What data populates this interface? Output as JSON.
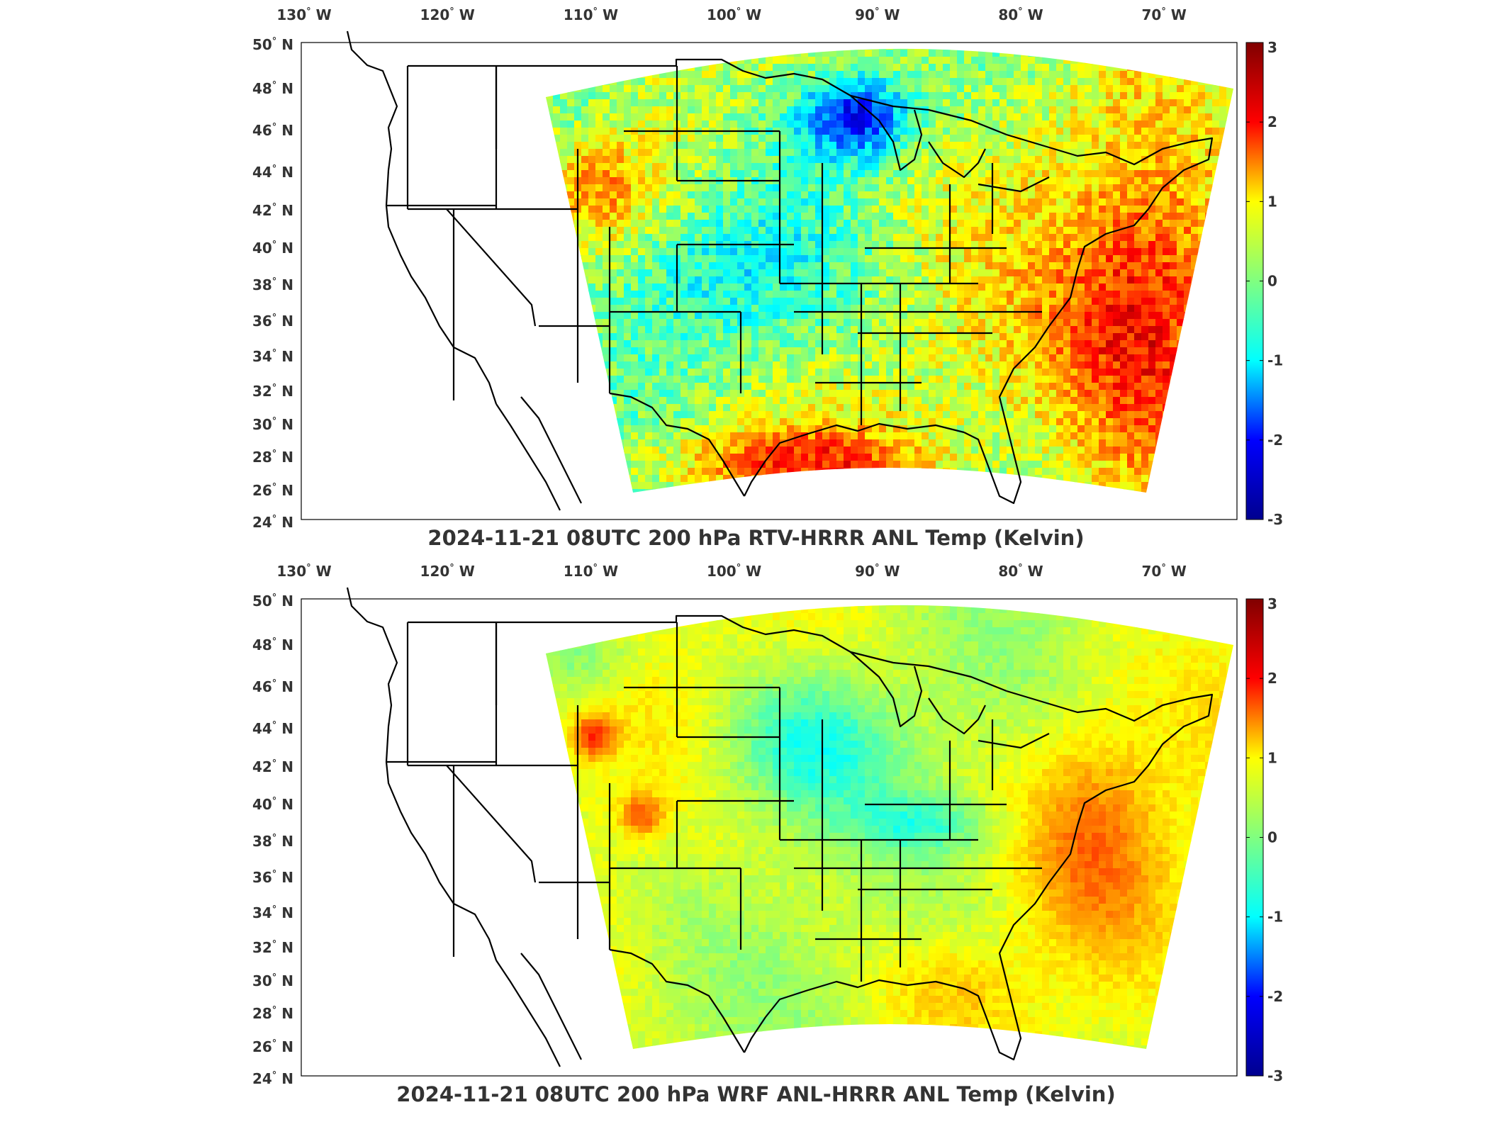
{
  "panels": [
    {
      "title": "2024-11-21 08UTC 200 hPa RTV-HRRR ANL Temp (Kelvin)",
      "variant": "rtv"
    },
    {
      "title": "2024-11-21 08UTC 200 hPa WRF ANL-HRRR ANL Temp (Kelvin)",
      "variant": "wrf"
    }
  ],
  "map": {
    "lon_ticks": [
      {
        "value": -130,
        "label": "130",
        "hemi": "W"
      },
      {
        "value": -120,
        "label": "120",
        "hemi": "W"
      },
      {
        "value": -110,
        "label": "110",
        "hemi": "W"
      },
      {
        "value": -100,
        "label": "100",
        "hemi": "W"
      },
      {
        "value": -90,
        "label": "90",
        "hemi": "W"
      },
      {
        "value": -80,
        "label": "80",
        "hemi": "W"
      },
      {
        "value": -70,
        "label": "70",
        "hemi": "W"
      }
    ],
    "lat_ticks": [
      {
        "value": 50,
        "label": "50",
        "hemi": "N"
      },
      {
        "value": 48,
        "label": "48",
        "hemi": "N"
      },
      {
        "value": 46,
        "label": "46",
        "hemi": "N"
      },
      {
        "value": 44,
        "label": "44",
        "hemi": "N"
      },
      {
        "value": 42,
        "label": "42",
        "hemi": "N"
      },
      {
        "value": 40,
        "label": "40",
        "hemi": "N"
      },
      {
        "value": 38,
        "label": "38",
        "hemi": "N"
      },
      {
        "value": 36,
        "label": "36",
        "hemi": "N"
      },
      {
        "value": 34,
        "label": "34",
        "hemi": "N"
      },
      {
        "value": 32,
        "label": "32",
        "hemi": "N"
      },
      {
        "value": 30,
        "label": "30",
        "hemi": "N"
      },
      {
        "value": 28,
        "label": "28",
        "hemi": "N"
      },
      {
        "value": 26,
        "label": "26",
        "hemi": "N"
      },
      {
        "value": 24,
        "label": "24",
        "hemi": "N"
      }
    ],
    "degree_symbol": "°"
  },
  "colorbar": {
    "colormap": "jet",
    "vmin": -3,
    "vmax": 3,
    "ticks": [
      "3",
      "2",
      "1",
      "0",
      "-1",
      "-2",
      "-3"
    ],
    "colors": [
      "#00008f",
      "#0000ff",
      "#00ffff",
      "#80ff80",
      "#ffff00",
      "#ff0000",
      "#800000"
    ]
  },
  "colors": {
    "coast": "#000000",
    "frame": "#000000"
  }
}
